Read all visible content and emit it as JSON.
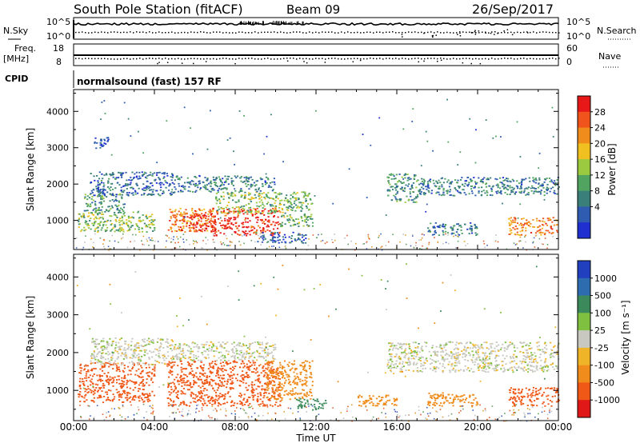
{
  "header": {
    "station": "South Pole Station (fitACF)",
    "beam": "Beam 09",
    "date": "26/Sep/2017"
  },
  "top_panels": {
    "nsky_label": "N.Sky",
    "nsky_ticks": [
      "10^5",
      "10^0"
    ],
    "nsearch_label": "N.Search",
    "nsearch_ticks": [
      "10^5",
      "10^0"
    ],
    "freq_label": "Freq.",
    "freq_unit": "[MHz]",
    "freq_ticks": [
      "18",
      "8"
    ],
    "nave_label": "Nave",
    "nave_ticks": [
      "60",
      "0"
    ],
    "cpid_label": "CPID",
    "cpid_text": "normalsound (fast) 157 RF"
  },
  "colors": {
    "power_scale": [
      "#2030d0",
      "#2f5cb0",
      "#3a7f7a",
      "#50a460",
      "#9bc940",
      "#f0c020",
      "#f08c1c",
      "#f0541c",
      "#e81818"
    ],
    "velocity_scale": [
      "#2040c0",
      "#2e6cb0",
      "#3c8a5c",
      "#80c040",
      "#c8c8c0",
      "#f0b428",
      "#f08c1c",
      "#f05818",
      "#e01818"
    ],
    "noise": [
      "#e06030",
      "#4060c0",
      "#60a060",
      "#e0a030",
      "#c0c0c0"
    ]
  },
  "chart_data": [
    {
      "type": "heatmap",
      "name": "power-panel",
      "ylabel": "Slant Range [km]",
      "xlabel": "Time UT",
      "xlim": [
        "00:00",
        "24:00"
      ],
      "ylim": [
        200,
        4600
      ],
      "x_ticks": [
        "00:00",
        "04:00",
        "08:00",
        "12:00",
        "16:00",
        "20:00",
        "00:00"
      ],
      "y_ticks": [
        1000,
        2000,
        3000,
        4000
      ],
      "colorbar": {
        "label": "Power [dB]",
        "ticks": [
          "28",
          "24",
          "20",
          "16",
          "12",
          "8",
          "4"
        ]
      },
      "echo_regions": [
        {
          "t": [
            0.2,
            4.0
          ],
          "r": [
            700,
            1250
          ],
          "p": 14
        },
        {
          "t": [
            0.5,
            2.5
          ],
          "r": [
            1250,
            1750
          ],
          "p": 10
        },
        {
          "t": [
            0.8,
            5.0
          ],
          "r": [
            1700,
            2350
          ],
          "p": 6
        },
        {
          "t": [
            1.0,
            1.7
          ],
          "r": [
            3000,
            3300
          ],
          "p": 5
        },
        {
          "t": [
            4.6,
            7.0
          ],
          "r": [
            700,
            1350
          ],
          "p": 22
        },
        {
          "t": [
            5.4,
            7.0
          ],
          "r": [
            700,
            1200
          ],
          "p": 28
        },
        {
          "t": [
            6.8,
            10.2
          ],
          "r": [
            600,
            1350
          ],
          "p": 27
        },
        {
          "t": [
            7.0,
            10.2
          ],
          "r": [
            1200,
            1800
          ],
          "p": 14
        },
        {
          "t": [
            5.0,
            10.0
          ],
          "r": [
            1800,
            2250
          ],
          "p": 8
        },
        {
          "t": [
            10.2,
            11.8
          ],
          "r": [
            850,
            1800
          ],
          "p": 12
        },
        {
          "t": [
            9.0,
            11.5
          ],
          "r": [
            400,
            700
          ],
          "p": 6
        },
        {
          "t": [
            15.5,
            17.0
          ],
          "r": [
            1500,
            2300
          ],
          "p": 10
        },
        {
          "t": [
            17.0,
            24.0
          ],
          "r": [
            1700,
            2200
          ],
          "p": 8
        },
        {
          "t": [
            17.5,
            20.0
          ],
          "r": [
            600,
            950
          ],
          "p": 8
        },
        {
          "t": [
            21.5,
            24.0
          ],
          "r": [
            600,
            1100
          ],
          "p": 22
        }
      ]
    },
    {
      "type": "heatmap",
      "name": "velocity-panel",
      "ylabel": "Slant Range [km]",
      "xlabel": "Time UT",
      "xlim": [
        "00:00",
        "24:00"
      ],
      "ylim": [
        200,
        4600
      ],
      "x_ticks": [
        "00:00",
        "04:00",
        "08:00",
        "12:00",
        "16:00",
        "20:00",
        "00:00"
      ],
      "y_ticks": [
        1000,
        2000,
        3000,
        4000
      ],
      "colorbar": {
        "label": "Velocity [m s⁻¹]",
        "ticks": [
          "1000",
          "500",
          "100",
          "25",
          "-25",
          "-100",
          "-500",
          "-1000"
        ]
      },
      "echo_regions": [
        {
          "t": [
            0.2,
            4.0
          ],
          "r": [
            700,
            1750
          ],
          "v": -500
        },
        {
          "t": [
            0.8,
            5.0
          ],
          "r": [
            1700,
            2400
          ],
          "v": 0
        },
        {
          "t": [
            4.6,
            10.2
          ],
          "r": [
            600,
            1800
          ],
          "v": -500
        },
        {
          "t": [
            5.0,
            10.0
          ],
          "r": [
            1800,
            2300
          ],
          "v": 0
        },
        {
          "t": [
            9.5,
            11.8
          ],
          "r": [
            750,
            1800
          ],
          "v": -100
        },
        {
          "t": [
            11.0,
            12.5
          ],
          "r": [
            500,
            800
          ],
          "v": 100
        },
        {
          "t": [
            14.0,
            16.0
          ],
          "r": [
            600,
            900
          ],
          "v": -100
        },
        {
          "t": [
            15.5,
            24.0
          ],
          "r": [
            1500,
            2300
          ],
          "v": 0
        },
        {
          "t": [
            17.5,
            20.0
          ],
          "r": [
            600,
            950
          ],
          "v": -100
        },
        {
          "t": [
            21.5,
            24.0
          ],
          "r": [
            600,
            1100
          ],
          "v": -500
        }
      ]
    }
  ],
  "x_axis_title": "Time UT"
}
